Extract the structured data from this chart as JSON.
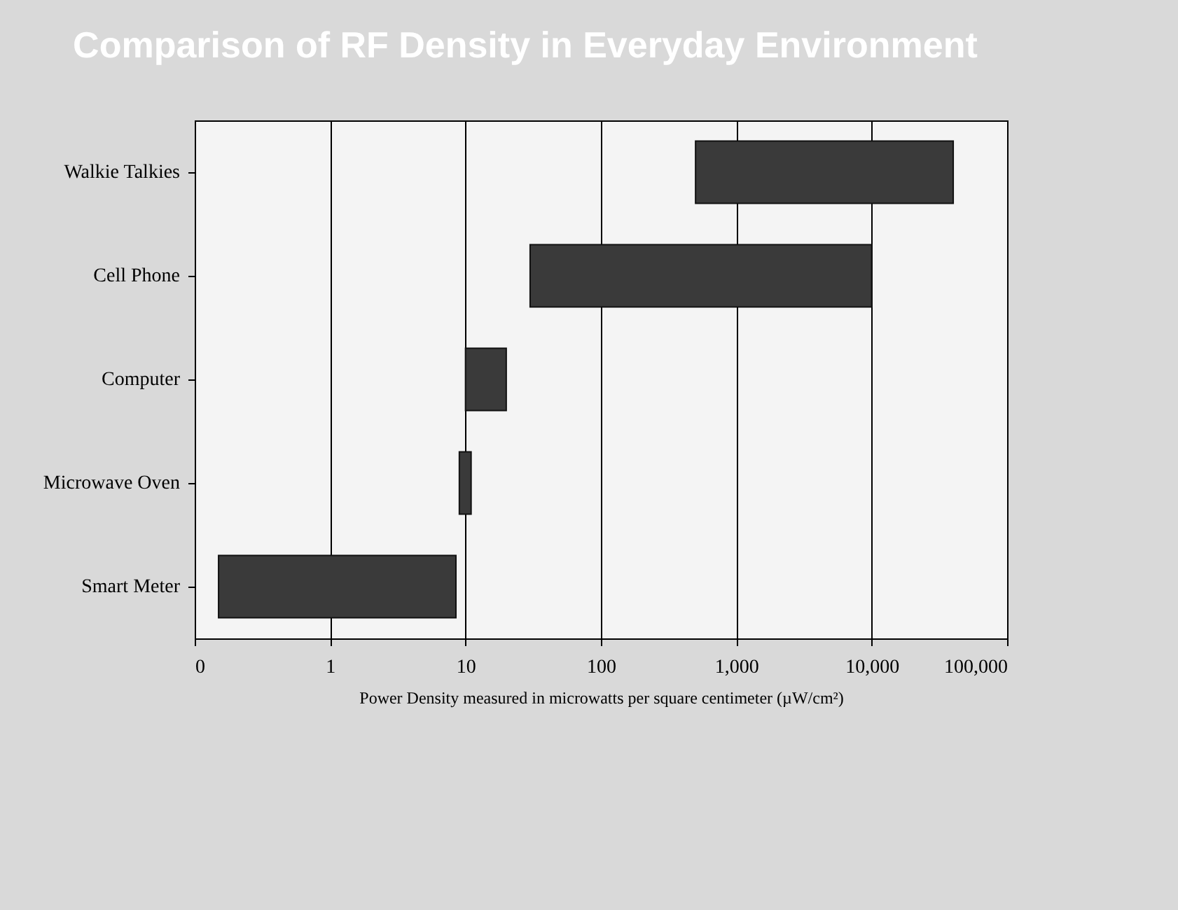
{
  "chart_data": {
    "type": "bar",
    "orientation": "horizontal",
    "title": "Comparison of RF Density in Everyday Environment",
    "xlabel": "Power Density measured in microwatts per square centimeter (µW/cm²)",
    "categories": [
      "Walkie Talkies",
      "Cell Phone",
      "Computer",
      "Microwave Oven",
      "Smart Meter"
    ],
    "base": [
      500,
      30,
      10,
      9,
      0.15
    ],
    "values": [
      39500,
      9970,
      10,
      2,
      8.35
    ],
    "color": "#3a3a3a",
    "log": "x",
    "xlim": [
      0.1,
      100000
    ],
    "xticks": [
      {
        "value": 0.1,
        "label": "0"
      },
      1,
      10,
      100,
      {
        "value": 1000,
        "label": "1,000"
      },
      {
        "value": 10000,
        "label": "10,000"
      },
      {
        "value": 100000,
        "label": "100,000"
      }
    ],
    "grid": "x"
  }
}
